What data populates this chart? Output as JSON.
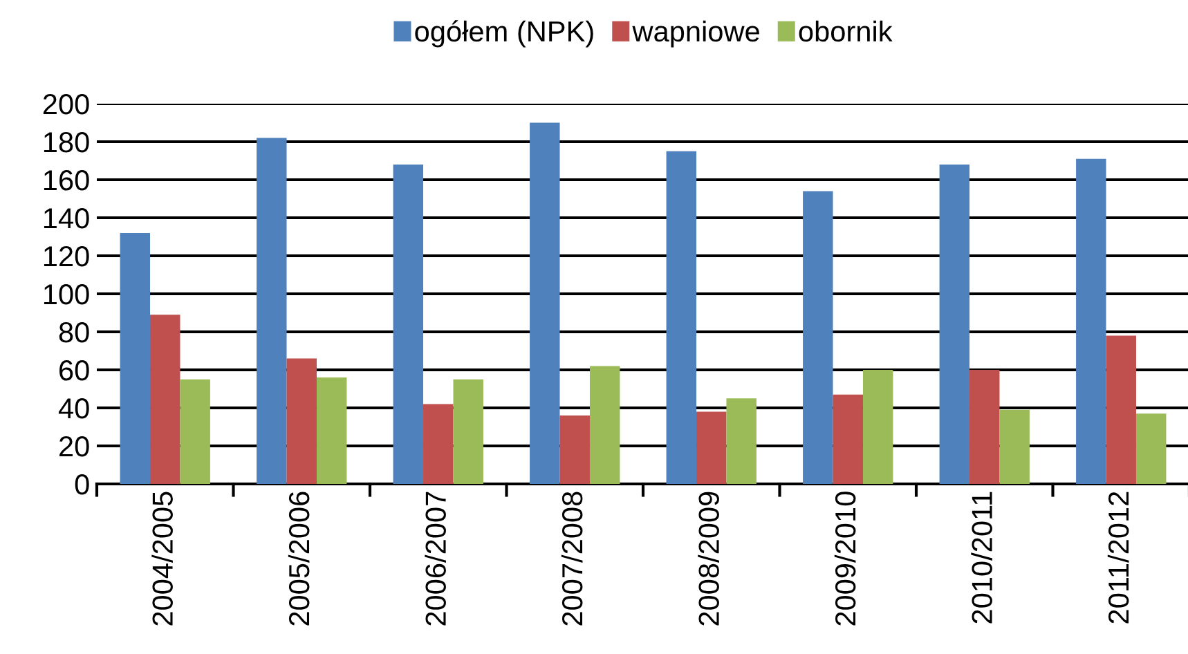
{
  "chart_data": {
    "type": "bar",
    "categories": [
      "2004/2005",
      "2005/2006",
      "2006/2007",
      "2007/2008",
      "2008/2009",
      "2009/2010",
      "2010/2011",
      "2011/2012"
    ],
    "series": [
      {
        "name": "ogółem (NPK)",
        "color": "#4f81bd",
        "values": [
          132,
          182,
          168,
          190,
          175,
          154,
          168,
          171
        ]
      },
      {
        "name": "wapniowe",
        "color": "#c0504d",
        "values": [
          89,
          66,
          42,
          36,
          38,
          47,
          60,
          78
        ]
      },
      {
        "name": "obornik",
        "color": "#9bbb59",
        "values": [
          55,
          56,
          55,
          62,
          45,
          60,
          39,
          37
        ]
      }
    ],
    "ylim": [
      0,
      200
    ],
    "yticks": [
      0,
      20,
      40,
      60,
      80,
      100,
      120,
      140,
      160,
      180,
      200
    ],
    "grid": "y",
    "legend": "top"
  }
}
